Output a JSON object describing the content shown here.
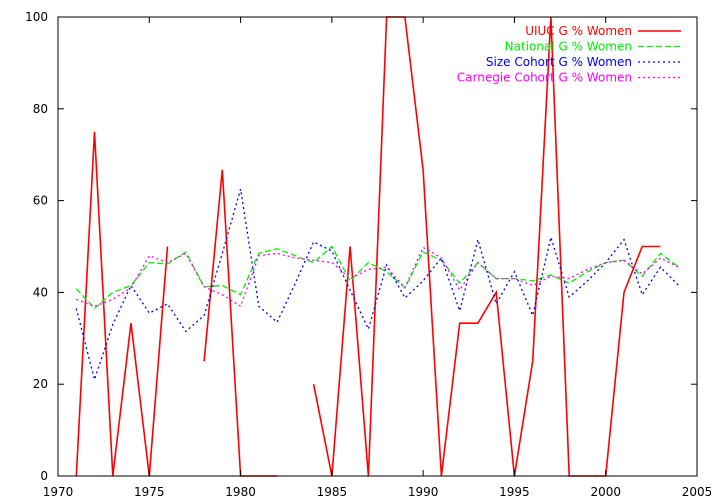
{
  "chart_data": {
    "type": "line",
    "title": "",
    "xlabel": "",
    "ylabel": "",
    "xlim": [
      1970,
      2005
    ],
    "ylim": [
      0,
      100
    ],
    "xticks": [
      1970,
      1975,
      1980,
      1985,
      1990,
      1995,
      2000,
      2005
    ],
    "yticks": [
      0,
      20,
      40,
      60,
      80,
      100
    ],
    "grid": false,
    "legend_position": "top-right",
    "x": [
      1971,
      1972,
      1973,
      1974,
      1975,
      1976,
      1977,
      1978,
      1979,
      1980,
      1981,
      1982,
      1983,
      1984,
      1985,
      1986,
      1987,
      1988,
      1989,
      1990,
      1991,
      1992,
      1993,
      1994,
      1995,
      1996,
      1997,
      1998,
      1999,
      2000,
      2001,
      2002,
      2003,
      2004
    ],
    "series": [
      {
        "name": "UIUC G % Women",
        "color": "#ff0000",
        "style": "solid",
        "values": [
          0,
          75,
          0,
          33.3,
          0,
          50,
          null,
          25,
          66.7,
          0,
          0,
          0,
          null,
          20,
          0,
          50,
          0,
          100,
          100,
          66.7,
          0,
          33.3,
          33.3,
          40,
          0,
          25,
          100,
          0,
          0,
          0,
          40,
          50,
          50,
          null
        ]
      },
      {
        "name": "National G % Women",
        "color": "#00ee00",
        "style": "dashed",
        "values": [
          40.8,
          36.5,
          40,
          41.5,
          46.5,
          46.2,
          48.8,
          41.2,
          41.5,
          39.5,
          48.5,
          49.5,
          48,
          46.5,
          50,
          42.5,
          46.5,
          44.5,
          41,
          48.8,
          47,
          42,
          46.5,
          43,
          43,
          42.5,
          43.8,
          42,
          44.5,
          46.5,
          47,
          43.5,
          48.5,
          45.5
        ]
      },
      {
        "name": "Size Cohort G % Women",
        "color": "#0000ee",
        "style": "dotted",
        "values": [
          36.5,
          21,
          33,
          41.5,
          35.5,
          37.5,
          31.5,
          35,
          48.5,
          62.5,
          37,
          33.5,
          42,
          51,
          49,
          40.5,
          32,
          46,
          38.8,
          42.5,
          47.5,
          36,
          51.5,
          37.5,
          44.5,
          35,
          52,
          39,
          42.5,
          46.5,
          51.5,
          39.5,
          45.5,
          41.5
        ]
      },
      {
        "name": "Carnegie Cohort G % Women",
        "color": "#ff00ff",
        "style": "dotted",
        "values": [
          38.5,
          37,
          38.5,
          41,
          48,
          46.5,
          48.5,
          41.2,
          39.5,
          37,
          48,
          48.5,
          47.5,
          47,
          46.5,
          43,
          45,
          45.5,
          41,
          49.8,
          47.5,
          40.5,
          46.5,
          43,
          43,
          41.5,
          43.5,
          43,
          45,
          46.5,
          47,
          44,
          47.5,
          45.5
        ]
      }
    ]
  }
}
